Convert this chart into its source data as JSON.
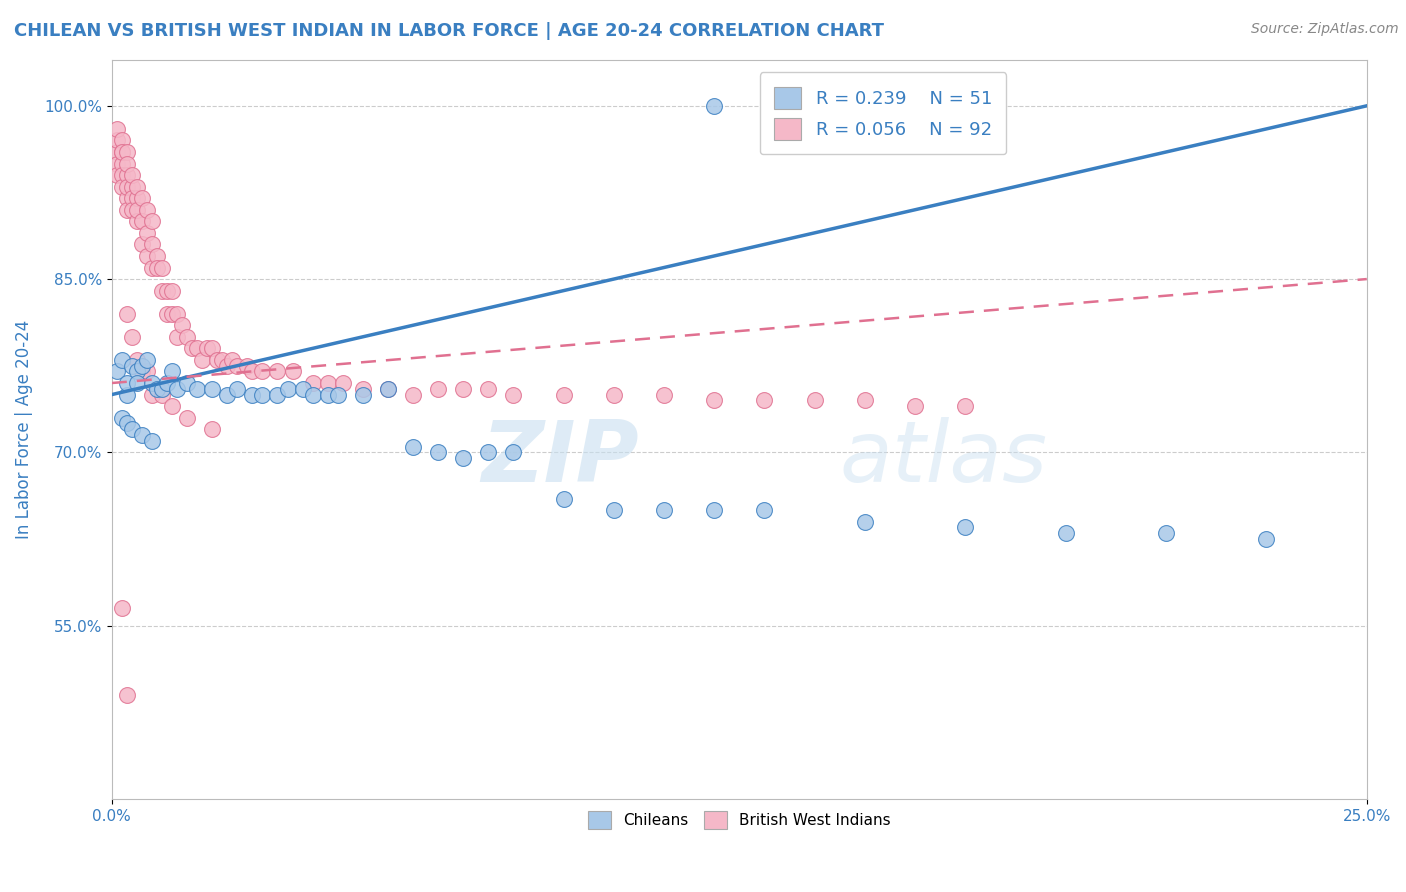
{
  "title": "CHILEAN VS BRITISH WEST INDIAN IN LABOR FORCE | AGE 20-24 CORRELATION CHART",
  "source": "Source: ZipAtlas.com",
  "ylabel": "In Labor Force | Age 20-24",
  "xlim": [
    0.0,
    0.25
  ],
  "ylim": [
    0.4,
    1.04
  ],
  "yticks": [
    0.55,
    0.7,
    0.85,
    1.0
  ],
  "yticklabels": [
    "55.0%",
    "70.0%",
    "85.0%",
    "100.0%"
  ],
  "r_chilean": 0.239,
  "n_chilean": 51,
  "r_bwi": 0.056,
  "n_bwi": 92,
  "blue_color": "#a8c8e8",
  "pink_color": "#f5b8c8",
  "blue_line_color": "#3a7fc1",
  "pink_line_color": "#e07090",
  "legend_text_color": "#3a7fc1",
  "title_color": "#3a7fc1",
  "watermark_zip": "ZIP",
  "watermark_atlas": "atlas",
  "chilean_x": [
    0.001,
    0.002,
    0.003,
    0.003,
    0.004,
    0.005,
    0.005,
    0.006,
    0.007,
    0.008,
    0.009,
    0.01,
    0.011,
    0.012,
    0.013,
    0.015,
    0.017,
    0.02,
    0.023,
    0.025,
    0.028,
    0.03,
    0.033,
    0.035,
    0.038,
    0.04,
    0.043,
    0.045,
    0.05,
    0.055,
    0.06,
    0.065,
    0.07,
    0.075,
    0.08,
    0.09,
    0.1,
    0.11,
    0.12,
    0.13,
    0.15,
    0.17,
    0.19,
    0.21,
    0.23,
    0.002,
    0.003,
    0.004,
    0.006,
    0.008,
    0.12
  ],
  "chilean_y": [
    0.77,
    0.78,
    0.75,
    0.76,
    0.775,
    0.77,
    0.76,
    0.775,
    0.78,
    0.76,
    0.755,
    0.755,
    0.76,
    0.77,
    0.755,
    0.76,
    0.755,
    0.755,
    0.75,
    0.755,
    0.75,
    0.75,
    0.75,
    0.755,
    0.755,
    0.75,
    0.75,
    0.75,
    0.75,
    0.755,
    0.705,
    0.7,
    0.695,
    0.7,
    0.7,
    0.66,
    0.65,
    0.65,
    0.65,
    0.65,
    0.64,
    0.635,
    0.63,
    0.63,
    0.625,
    0.73,
    0.725,
    0.72,
    0.715,
    0.71,
    1.0
  ],
  "bwi_x": [
    0.001,
    0.001,
    0.001,
    0.001,
    0.001,
    0.002,
    0.002,
    0.002,
    0.002,
    0.002,
    0.002,
    0.003,
    0.003,
    0.003,
    0.003,
    0.003,
    0.003,
    0.004,
    0.004,
    0.004,
    0.004,
    0.005,
    0.005,
    0.005,
    0.005,
    0.006,
    0.006,
    0.006,
    0.007,
    0.007,
    0.007,
    0.008,
    0.008,
    0.008,
    0.009,
    0.009,
    0.01,
    0.01,
    0.011,
    0.011,
    0.012,
    0.012,
    0.013,
    0.013,
    0.014,
    0.015,
    0.016,
    0.017,
    0.018,
    0.019,
    0.02,
    0.021,
    0.022,
    0.023,
    0.024,
    0.025,
    0.027,
    0.028,
    0.03,
    0.033,
    0.036,
    0.04,
    0.043,
    0.046,
    0.05,
    0.055,
    0.06,
    0.065,
    0.07,
    0.075,
    0.08,
    0.09,
    0.1,
    0.11,
    0.12,
    0.13,
    0.14,
    0.15,
    0.16,
    0.17,
    0.003,
    0.004,
    0.005,
    0.006,
    0.007,
    0.008,
    0.01,
    0.012,
    0.015,
    0.02,
    0.002,
    0.003
  ],
  "bwi_y": [
    0.96,
    0.97,
    0.95,
    0.98,
    0.94,
    0.96,
    0.95,
    0.97,
    0.94,
    0.93,
    0.96,
    0.94,
    0.92,
    0.96,
    0.93,
    0.95,
    0.91,
    0.93,
    0.92,
    0.94,
    0.91,
    0.92,
    0.9,
    0.93,
    0.91,
    0.9,
    0.88,
    0.92,
    0.89,
    0.87,
    0.91,
    0.88,
    0.86,
    0.9,
    0.87,
    0.86,
    0.86,
    0.84,
    0.84,
    0.82,
    0.84,
    0.82,
    0.82,
    0.8,
    0.81,
    0.8,
    0.79,
    0.79,
    0.78,
    0.79,
    0.79,
    0.78,
    0.78,
    0.775,
    0.78,
    0.775,
    0.775,
    0.77,
    0.77,
    0.77,
    0.77,
    0.76,
    0.76,
    0.76,
    0.755,
    0.755,
    0.75,
    0.755,
    0.755,
    0.755,
    0.75,
    0.75,
    0.75,
    0.75,
    0.745,
    0.745,
    0.745,
    0.745,
    0.74,
    0.74,
    0.82,
    0.8,
    0.78,
    0.77,
    0.77,
    0.75,
    0.75,
    0.74,
    0.73,
    0.72,
    0.565,
    0.49
  ]
}
